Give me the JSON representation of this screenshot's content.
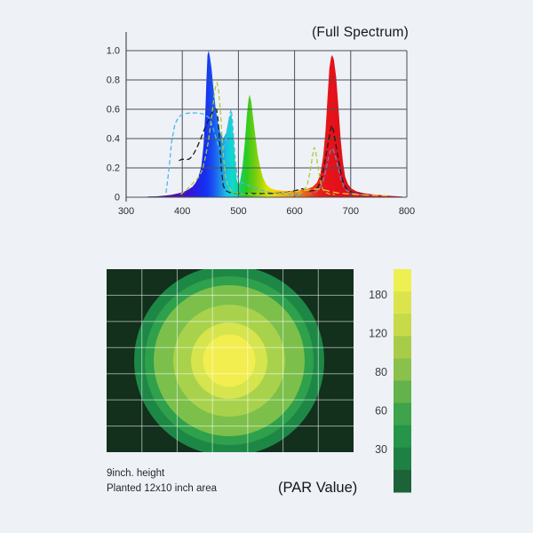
{
  "page": {
    "background": "#eef1f6"
  },
  "ui": {
    "spectrum_title": "(Full Spectrum)",
    "par_title": "(PAR Value)",
    "caption_line1": "9inch. height",
    "caption_line2": "Planted 12x10 inch area"
  },
  "chart_data": [
    {
      "type": "area",
      "title": "(Full Spectrum)",
      "xlim": [
        300,
        800
      ],
      "ylim": [
        0,
        1.0
      ],
      "x_ticks": [
        300,
        400,
        500,
        600,
        700,
        800
      ],
      "y_ticks": [
        0,
        0.2,
        0.4,
        0.6,
        0.8,
        1.0
      ],
      "y_tick_labels": [
        "0",
        "0.2",
        "0.4",
        "0.6",
        "0.8",
        "1.0"
      ],
      "grid": true,
      "grid_color": "#4b5056",
      "fill_series": {
        "name": "full-spectrum-fill",
        "points": [
          [
            338,
            0.004
          ],
          [
            355,
            0.006
          ],
          [
            368,
            0.01
          ],
          [
            380,
            0.016
          ],
          [
            392,
            0.026
          ],
          [
            402,
            0.036
          ],
          [
            410,
            0.05
          ],
          [
            418,
            0.07
          ],
          [
            424,
            0.1
          ],
          [
            429,
            0.14
          ],
          [
            434,
            0.21
          ],
          [
            438,
            0.36
          ],
          [
            441,
            0.57
          ],
          [
            443,
            0.8
          ],
          [
            445,
            0.97
          ],
          [
            447,
            1.0
          ],
          [
            449,
            0.96
          ],
          [
            452,
            0.88
          ],
          [
            455,
            0.76
          ],
          [
            459,
            0.62
          ],
          [
            463,
            0.52
          ],
          [
            468,
            0.44
          ],
          [
            473,
            0.4
          ],
          [
            478,
            0.44
          ],
          [
            482,
            0.52
          ],
          [
            486,
            0.57
          ],
          [
            488,
            0.55
          ],
          [
            491,
            0.42
          ],
          [
            494,
            0.25
          ],
          [
            497,
            0.12
          ],
          [
            500,
            0.08
          ],
          [
            503,
            0.11
          ],
          [
            507,
            0.2
          ],
          [
            511,
            0.36
          ],
          [
            515,
            0.56
          ],
          [
            518,
            0.67
          ],
          [
            520,
            0.7
          ],
          [
            523,
            0.65
          ],
          [
            526,
            0.55
          ],
          [
            530,
            0.42
          ],
          [
            534,
            0.3
          ],
          [
            539,
            0.2
          ],
          [
            544,
            0.13
          ],
          [
            550,
            0.085
          ],
          [
            557,
            0.062
          ],
          [
            565,
            0.05
          ],
          [
            575,
            0.045
          ],
          [
            588,
            0.042
          ],
          [
            600,
            0.046
          ],
          [
            612,
            0.05
          ],
          [
            622,
            0.056
          ],
          [
            632,
            0.07
          ],
          [
            640,
            0.1
          ],
          [
            646,
            0.16
          ],
          [
            651,
            0.28
          ],
          [
            655,
            0.45
          ],
          [
            659,
            0.7
          ],
          [
            662,
            0.88
          ],
          [
            665,
            0.955
          ],
          [
            667,
            0.97
          ],
          [
            670,
            0.94
          ],
          [
            674,
            0.82
          ],
          [
            678,
            0.62
          ],
          [
            682,
            0.4
          ],
          [
            686,
            0.24
          ],
          [
            690,
            0.14
          ],
          [
            695,
            0.09
          ],
          [
            701,
            0.06
          ],
          [
            710,
            0.04
          ],
          [
            722,
            0.028
          ],
          [
            738,
            0.02
          ],
          [
            755,
            0.014
          ],
          [
            772,
            0.009
          ],
          [
            792,
            0.005
          ]
        ],
        "gradient_stops": [
          [
            340,
            "#2d0845"
          ],
          [
            365,
            "#4a0b86"
          ],
          [
            390,
            "#5a0cb0"
          ],
          [
            412,
            "#3b14d2"
          ],
          [
            430,
            "#1f25e8"
          ],
          [
            443,
            "#1433f2"
          ],
          [
            455,
            "#1a52f0"
          ],
          [
            468,
            "#1e8cec"
          ],
          [
            479,
            "#18c2e4"
          ],
          [
            489,
            "#0fd9cf"
          ],
          [
            497,
            "#12d6a4"
          ],
          [
            505,
            "#17cf5e"
          ],
          [
            514,
            "#2bcb20"
          ],
          [
            527,
            "#67cd12"
          ],
          [
            540,
            "#a8d509"
          ],
          [
            552,
            "#dfe300"
          ],
          [
            563,
            "#f6d500"
          ],
          [
            577,
            "#fcbb00"
          ],
          [
            592,
            "#fd9e00"
          ],
          [
            607,
            "#fc8000"
          ],
          [
            620,
            "#f85c05"
          ],
          [
            633,
            "#f1360f"
          ],
          [
            646,
            "#ea1b16"
          ],
          [
            662,
            "#e5131b"
          ],
          [
            700,
            "#de0f15"
          ],
          [
            795,
            "#d90d12"
          ]
        ]
      },
      "series": [
        {
          "name": "dashed-cyan-curve",
          "color": "#49b8e8",
          "dash": "5 3",
          "points": [
            [
              371,
              0.03
            ],
            [
              376,
              0.18
            ],
            [
              381,
              0.38
            ],
            [
              387,
              0.5
            ],
            [
              394,
              0.55
            ],
            [
              403,
              0.57
            ],
            [
              415,
              0.575
            ],
            [
              428,
              0.575
            ],
            [
              440,
              0.565
            ],
            [
              448,
              0.54
            ],
            [
              455,
              0.47
            ],
            [
              461,
              0.39
            ],
            [
              466,
              0.33
            ],
            [
              471,
              0.315
            ],
            [
              476,
              0.36
            ],
            [
              481,
              0.47
            ],
            [
              485,
              0.57
            ],
            [
              487,
              0.6
            ],
            [
              489,
              0.54
            ],
            [
              492,
              0.38
            ],
            [
              495,
              0.22
            ],
            [
              499,
              0.13
            ],
            [
              505,
              0.1
            ],
            [
              513,
              0.09
            ],
            [
              522,
              0.075
            ],
            [
              532,
              0.06
            ],
            [
              543,
              0.045
            ],
            [
              556,
              0.033
            ],
            [
              572,
              0.025
            ],
            [
              592,
              0.02
            ],
            [
              612,
              0.016
            ]
          ]
        },
        {
          "name": "dashed-black-curve",
          "color": "#1d1d1d",
          "dash": "6 3.5",
          "points": [
            [
              394,
              0.25
            ],
            [
              400,
              0.26
            ],
            [
              406,
              0.255
            ],
            [
              412,
              0.26
            ],
            [
              418,
              0.28
            ],
            [
              425,
              0.33
            ],
            [
              432,
              0.39
            ],
            [
              439,
              0.46
            ],
            [
              446,
              0.52
            ],
            [
              452,
              0.57
            ],
            [
              457,
              0.6
            ],
            [
              461,
              0.6
            ],
            [
              464,
              0.52
            ],
            [
              467,
              0.36
            ],
            [
              470,
              0.18
            ],
            [
              473,
              0.08
            ],
            [
              477,
              0.045
            ],
            [
              484,
              0.032
            ],
            [
              495,
              0.028
            ],
            [
              510,
              0.026
            ],
            [
              530,
              0.025
            ],
            [
              552,
              0.025
            ],
            [
              572,
              0.028
            ],
            [
              588,
              0.034
            ],
            [
              600,
              0.043
            ],
            [
              608,
              0.053
            ],
            [
              614,
              0.058
            ],
            [
              620,
              0.05
            ],
            [
              627,
              0.042
            ],
            [
              635,
              0.046
            ],
            [
              642,
              0.07
            ],
            [
              648,
              0.13
            ],
            [
              653,
              0.22
            ],
            [
              658,
              0.33
            ],
            [
              663,
              0.44
            ],
            [
              666,
              0.49
            ],
            [
              669,
              0.46
            ],
            [
              673,
              0.37
            ],
            [
              678,
              0.26
            ],
            [
              683,
              0.15
            ],
            [
              688,
              0.085
            ],
            [
              694,
              0.05
            ],
            [
              702,
              0.033
            ],
            [
              712,
              0.025
            ],
            [
              726,
              0.02
            ]
          ]
        },
        {
          "name": "dashed-olive-curve",
          "color": "#b5c832",
          "dash": "5 3",
          "points": [
            [
              397,
              0.02
            ],
            [
              406,
              0.045
            ],
            [
              414,
              0.075
            ],
            [
              420,
              0.1
            ],
            [
              426,
              0.122
            ],
            [
              431,
              0.148
            ],
            [
              436,
              0.19
            ],
            [
              441,
              0.27
            ],
            [
              446,
              0.37
            ],
            [
              450,
              0.48
            ],
            [
              454,
              0.6
            ],
            [
              457,
              0.7
            ],
            [
              460,
              0.77
            ],
            [
              462,
              0.78
            ],
            [
              465,
              0.72
            ],
            [
              468,
              0.58
            ],
            [
              471,
              0.4
            ],
            [
              474,
              0.25
            ],
            [
              477,
              0.14
            ],
            [
              481,
              0.08
            ],
            [
              486,
              0.05
            ],
            [
              493,
              0.032
            ],
            [
              505,
              0.025
            ],
            [
              525,
              0.02
            ],
            [
              550,
              0.018
            ],
            [
              575,
              0.018
            ],
            [
              598,
              0.02
            ],
            [
              610,
              0.026
            ],
            [
              617,
              0.042
            ],
            [
              623,
              0.09
            ],
            [
              628,
              0.18
            ],
            [
              632,
              0.28
            ],
            [
              635,
              0.34
            ],
            [
              638,
              0.3
            ],
            [
              642,
              0.2
            ],
            [
              646,
              0.11
            ],
            [
              650,
              0.055
            ],
            [
              655,
              0.032
            ],
            [
              662,
              0.022
            ],
            [
              672,
              0.018
            ]
          ]
        },
        {
          "name": "dashed-violet-curve",
          "color": "#7a7cc8",
          "dash": "5 3",
          "points": [
            [
              598,
              0.015
            ],
            [
              615,
              0.018
            ],
            [
              628,
              0.022
            ],
            [
              638,
              0.035
            ],
            [
              645,
              0.06
            ],
            [
              651,
              0.11
            ],
            [
              656,
              0.19
            ],
            [
              661,
              0.28
            ],
            [
              665,
              0.33
            ],
            [
              668,
              0.33
            ],
            [
              672,
              0.29
            ],
            [
              677,
              0.21
            ],
            [
              682,
              0.13
            ],
            [
              687,
              0.075
            ],
            [
              693,
              0.045
            ],
            [
              700,
              0.03
            ],
            [
              710,
              0.022
            ],
            [
              725,
              0.016
            ],
            [
              742,
              0.012
            ]
          ]
        },
        {
          "name": "dashed-yellow-curve",
          "color": "#e6c93a",
          "dash": "7 4",
          "points": [
            [
              565,
              0.022
            ],
            [
              580,
              0.028
            ],
            [
              595,
              0.034
            ],
            [
              610,
              0.042
            ],
            [
              625,
              0.05
            ],
            [
              638,
              0.056
            ],
            [
              646,
              0.055
            ],
            [
              655,
              0.048
            ],
            [
              665,
              0.038
            ],
            [
              676,
              0.03
            ],
            [
              690,
              0.024
            ],
            [
              705,
              0.02
            ],
            [
              722,
              0.016
            ],
            [
              745,
              0.012
            ],
            [
              765,
              0.01
            ]
          ]
        }
      ]
    },
    {
      "type": "heatmap",
      "title": "(PAR Value)",
      "caption": [
        "9inch. height",
        "Planted 12x10 inch area"
      ],
      "map": {
        "background": "#12301c",
        "grid_cols": 7,
        "grid_rows": 7,
        "grid_color": "rgba(255,255,255,0.55)",
        "rings": [
          {
            "radius": 107,
            "color": "#1d8845"
          },
          {
            "radius": 95,
            "color": "#2fa04b"
          },
          {
            "radius": 85,
            "color": "#7cc04b"
          },
          {
            "radius": 63,
            "color": "#a9d24c"
          },
          {
            "radius": 43,
            "color": "#d6e44e"
          },
          {
            "radius": 29.5,
            "color": "#f2ee4f"
          }
        ]
      },
      "colorbar": {
        "labels": [
          "180",
          "120",
          "80",
          "60",
          "30"
        ],
        "segment_colors": [
          "#eef051",
          "#dce44d",
          "#c6da4a",
          "#a8cc49",
          "#8ac14c",
          "#63b24b",
          "#3ea34b",
          "#26954a",
          "#1e8144",
          "#1d6338"
        ]
      }
    }
  ]
}
